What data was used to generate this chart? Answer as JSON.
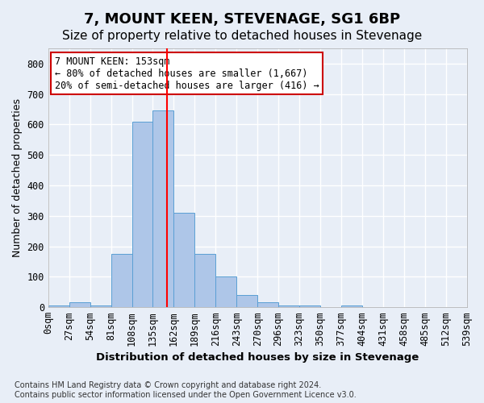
{
  "title": "7, MOUNT KEEN, STEVENAGE, SG1 6BP",
  "subtitle": "Size of property relative to detached houses in Stevenage",
  "xlabel": "Distribution of detached houses by size in Stevenage",
  "ylabel": "Number of detached properties",
  "footnote": "Contains HM Land Registry data © Crown copyright and database right 2024.\nContains public sector information licensed under the Open Government Licence v3.0.",
  "bin_labels": [
    "0sqm",
    "27sqm",
    "54sqm",
    "81sqm",
    "108sqm",
    "135sqm",
    "162sqm",
    "189sqm",
    "216sqm",
    "243sqm",
    "270sqm",
    "296sqm",
    "323sqm",
    "350sqm",
    "377sqm",
    "404sqm",
    "431sqm",
    "458sqm",
    "485sqm",
    "512sqm",
    "539sqm"
  ],
  "bar_values": [
    5,
    15,
    5,
    175,
    610,
    645,
    310,
    175,
    100,
    40,
    15,
    5,
    5,
    0,
    5,
    0,
    0,
    0,
    0,
    0
  ],
  "bar_color": "#aec6e8",
  "bar_edge_color": "#5a9fd4",
  "annotation_text": "7 MOUNT KEEN: 153sqm\n← 80% of detached houses are smaller (1,667)\n20% of semi-detached houses are larger (416) →",
  "annotation_box_color": "#ffffff",
  "annotation_box_edge": "#cc0000",
  "ylim": [
    0,
    850
  ],
  "yticks": [
    0,
    100,
    200,
    300,
    400,
    500,
    600,
    700,
    800
  ],
  "background_color": "#e8eef7",
  "grid_color": "#ffffff",
  "title_fontsize": 13,
  "subtitle_fontsize": 11,
  "tick_fontsize": 8.5
}
